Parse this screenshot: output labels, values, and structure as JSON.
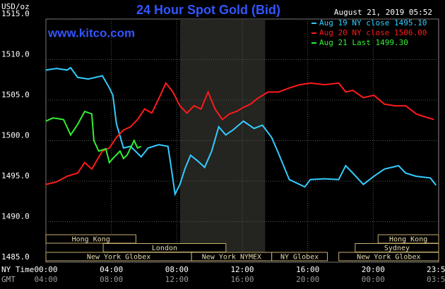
{
  "chart_data": {
    "type": "line",
    "title": "24 Hour Spot Gold (Bid)",
    "source": "www.kitco.com",
    "timestamp": "August 21, 2019 05:52",
    "ylabel": "USD/oz",
    "xlabel": "NY Time",
    "x2label": "GMT",
    "ylim": [
      1485,
      1515
    ],
    "yticks": [
      {
        "value": 1485,
        "label": "1485.0"
      },
      {
        "value": 1490,
        "label": "1490.0"
      },
      {
        "value": 1495,
        "label": "1495.0"
      },
      {
        "value": 1500,
        "label": "1500.0"
      },
      {
        "value": 1505,
        "label": "1505.0"
      },
      {
        "value": 1510,
        "label": "1510.0"
      },
      {
        "value": 1515,
        "label": "1515.0"
      }
    ],
    "xlim": [
      0,
      24
    ],
    "xticks": [
      {
        "value": 0,
        "label": "00:00"
      },
      {
        "value": 4,
        "label": "04:00"
      },
      {
        "value": 8,
        "label": "08:00"
      },
      {
        "value": 12,
        "label": "12:00"
      },
      {
        "value": 16,
        "label": "16:00"
      },
      {
        "value": 20,
        "label": "20:00"
      },
      {
        "value": 23.98,
        "label": "23:59"
      }
    ],
    "x2ticks": [
      {
        "value": 0,
        "label": "04:00"
      },
      {
        "value": 4,
        "label": "08:00"
      },
      {
        "value": 8,
        "label": "12:00"
      },
      {
        "value": 12,
        "label": "16:00"
      },
      {
        "value": 16,
        "label": "20:00"
      },
      {
        "value": 20,
        "label": "00:00"
      },
      {
        "value": 23.98,
        "label": "03:59"
      }
    ],
    "grid": true,
    "shade": [
      8.2,
      13.4
    ],
    "sessions": [
      [
        {
          "label": "Hong Kong",
          "start": 0,
          "end": 5.5
        },
        {
          "label": "Hong Kong",
          "start": 20.3,
          "end": 24
        }
      ],
      [
        {
          "label": "London",
          "start": 3.5,
          "end": 11
        },
        {
          "label": "Sydney",
          "start": 18.9,
          "end": 24
        }
      ],
      [
        {
          "label": "New York Globex",
          "start": 0,
          "end": 8.9
        },
        {
          "label": "New York NYMEX",
          "start": 8.9,
          "end": 13.8
        },
        {
          "label": "NY Globex",
          "start": 13.8,
          "end": 17.2
        },
        {
          "label": "New York Globex",
          "start": 17.9,
          "end": 24
        }
      ]
    ],
    "series": [
      {
        "name": "Aug 19 NY close 1495.10",
        "color": "#33ccff",
        "x": [
          0,
          0.65,
          1.29,
          1.51,
          1.94,
          2.59,
          3.45,
          3.88,
          4.09,
          4.31,
          4.74,
          5.17,
          5.82,
          6.25,
          6.9,
          7.46,
          7.67,
          7.89,
          8.19,
          8.49,
          8.84,
          9.27,
          9.7,
          10.13,
          10.56,
          10.99,
          11.42,
          12.07,
          12.72,
          13.23,
          13.79,
          14.22,
          14.87,
          15.82,
          16.16,
          17.03,
          17.89,
          18.32,
          18.75,
          19.4,
          20.04,
          20.69,
          21.55,
          21.98,
          22.63,
          23.49,
          23.84
        ],
        "values": [
          1508.7,
          1508.9,
          1508.7,
          1509.0,
          1507.8,
          1507.6,
          1508.0,
          1506.5,
          1505.6,
          1502.1,
          1499.1,
          1499.3,
          1498.0,
          1499.1,
          1499.5,
          1499.3,
          1496.5,
          1493.4,
          1494.6,
          1496.5,
          1498.2,
          1497.5,
          1496.7,
          1498.7,
          1501.7,
          1500.7,
          1501.3,
          1502.4,
          1501.5,
          1501.9,
          1500.4,
          1498.4,
          1495.2,
          1494.3,
          1495.2,
          1495.3,
          1495.2,
          1496.9,
          1496.0,
          1494.6,
          1495.6,
          1496.5,
          1496.9,
          1496.0,
          1495.6,
          1495.4,
          1494.5
        ]
      },
      {
        "name": "Aug 20 NY close 1506.00",
        "color": "#ff1a1a",
        "x": [
          0,
          0.65,
          1.29,
          1.94,
          2.37,
          2.8,
          3.45,
          3.88,
          4.31,
          4.74,
          5.17,
          5.6,
          6.03,
          6.47,
          6.9,
          7.33,
          7.76,
          8.19,
          8.62,
          9.05,
          9.48,
          9.91,
          10.34,
          10.78,
          11.21,
          11.64,
          12.07,
          12.5,
          12.93,
          13.58,
          14.22,
          14.87,
          15.52,
          16.16,
          17.03,
          17.89,
          18.32,
          18.75,
          19.4,
          20.04,
          20.69,
          21.34,
          21.98,
          22.63,
          23.06,
          23.71
        ],
        "values": [
          1494.6,
          1494.9,
          1495.6,
          1496.0,
          1497.3,
          1496.5,
          1498.7,
          1499.1,
          1500.4,
          1501.3,
          1501.7,
          1502.6,
          1503.9,
          1503.4,
          1505.2,
          1507.1,
          1506.0,
          1504.3,
          1503.4,
          1504.3,
          1503.9,
          1506.0,
          1503.9,
          1502.6,
          1503.3,
          1503.6,
          1504.1,
          1504.5,
          1505.2,
          1506.0,
          1506.0,
          1506.5,
          1506.9,
          1507.1,
          1506.9,
          1507.1,
          1506.0,
          1506.2,
          1505.3,
          1505.6,
          1504.5,
          1504.3,
          1504.3,
          1503.3,
          1503.0,
          1502.6
        ]
      },
      {
        "name": "Aug 21 Last 1499.30",
        "color": "#33ee33",
        "x": [
          0,
          0.43,
          1.08,
          1.51,
          1.94,
          2.37,
          2.8,
          2.93,
          3.23,
          3.66,
          3.88,
          4.09,
          4.53,
          4.74,
          4.96,
          5.17,
          5.39,
          5.6,
          5.82
        ],
        "values": [
          1502.4,
          1502.8,
          1502.6,
          1500.7,
          1502.0,
          1503.6,
          1503.3,
          1500.0,
          1498.7,
          1499.0,
          1497.3,
          1497.8,
          1498.7,
          1497.8,
          1498.2,
          1499.1,
          1500.0,
          1499.1,
          1499.3
        ]
      }
    ]
  }
}
